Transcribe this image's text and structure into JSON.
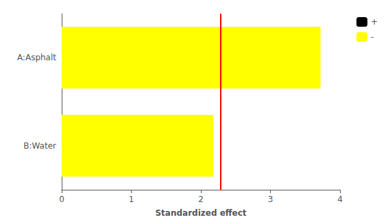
{
  "chart_data": {
    "type": "bar",
    "orientation": "horizontal",
    "categories": [
      "B:Water",
      "A:Asphalt"
    ],
    "series": [
      {
        "name": "+",
        "color": "#000000",
        "values": [
          null,
          null
        ]
      },
      {
        "name": "-",
        "color": "#ffff00",
        "values": [
          2.18,
          3.72
        ]
      }
    ],
    "reference_lines": [
      {
        "value": 2.28,
        "color": "red"
      }
    ],
    "xlabel": "Standardized effect",
    "xlim": [
      0,
      4
    ],
    "xticks": [
      0,
      1,
      2,
      3,
      4
    ],
    "grid": false,
    "legend": "right"
  }
}
